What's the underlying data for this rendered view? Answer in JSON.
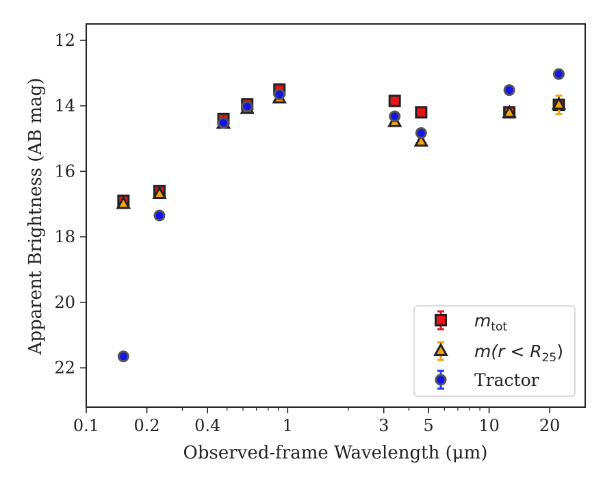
{
  "chart_data": {
    "type": "scatter",
    "title": "",
    "xlabel": "Observed-frame Wavelength (μm)",
    "ylabel": "Apparent Brightness (AB mag)",
    "xscale": "log",
    "xlim": [
      0.1,
      30
    ],
    "ylim": [
      23.2,
      11.5
    ],
    "y_inverted": true,
    "grid": false,
    "legend_position": "lower-right",
    "x_tick_labels": [
      "0.1",
      "0.2",
      "0.4",
      "1",
      "3",
      "5",
      "10",
      "20"
    ],
    "x_ticks": [
      0.1,
      0.2,
      0.4,
      1,
      3,
      5,
      10,
      20
    ],
    "y_tick_labels": [
      "12",
      "14",
      "16",
      "18",
      "20",
      "22"
    ],
    "y_ticks": [
      12,
      14,
      16,
      18,
      20,
      22
    ],
    "series": [
      {
        "name": "m_tot",
        "marker": "square",
        "color": "#e8141b",
        "edge_color": "#222222",
        "error_color": "#e8141b",
        "points": [
          {
            "x": 0.153,
            "y": 16.9,
            "yerr": 0.08
          },
          {
            "x": 0.231,
            "y": 16.6,
            "yerr": 0.08
          },
          {
            "x": 0.48,
            "y": 14.4,
            "yerr": 0.05
          },
          {
            "x": 0.63,
            "y": 13.95,
            "yerr": 0.05
          },
          {
            "x": 0.91,
            "y": 13.5,
            "yerr": 0.05
          },
          {
            "x": 3.4,
            "y": 13.85,
            "yerr": 0.05
          },
          {
            "x": 4.6,
            "y": 14.2,
            "yerr": 0.05
          },
          {
            "x": 12.6,
            "y": 14.2,
            "yerr": 0.08
          },
          {
            "x": 22.2,
            "y": 13.97,
            "yerr": 0.08
          }
        ]
      },
      {
        "name": "m(r < R_25)",
        "marker": "triangle",
        "color": "#f5a50e",
        "edge_color": "#222222",
        "error_color": "#f5a50e",
        "points": [
          {
            "x": 0.153,
            "y": 17.0,
            "yerr": 0.05
          },
          {
            "x": 0.231,
            "y": 16.7,
            "yerr": 0.05
          },
          {
            "x": 0.48,
            "y": 14.55,
            "yerr": 0.04
          },
          {
            "x": 0.63,
            "y": 14.1,
            "yerr": 0.04
          },
          {
            "x": 0.91,
            "y": 13.78,
            "yerr": 0.04
          },
          {
            "x": 3.4,
            "y": 14.5,
            "yerr": 0.04
          },
          {
            "x": 4.6,
            "y": 15.1,
            "yerr": 0.05
          },
          {
            "x": 12.6,
            "y": 14.22,
            "yerr": 0.1
          },
          {
            "x": 22.2,
            "y": 13.97,
            "yerr": 0.28
          }
        ]
      },
      {
        "name": "Tractor",
        "marker": "circle",
        "color": "#1414e6",
        "edge_color": "#555555",
        "error_color": "#1e3cff",
        "points": [
          {
            "x": 0.153,
            "y": 21.65,
            "yerr": 0.05
          },
          {
            "x": 0.231,
            "y": 17.35,
            "yerr": 0.05
          },
          {
            "x": 0.48,
            "y": 14.52,
            "yerr": 0.03
          },
          {
            "x": 0.63,
            "y": 14.02,
            "yerr": 0.03
          },
          {
            "x": 0.91,
            "y": 13.65,
            "yerr": 0.03
          },
          {
            "x": 3.4,
            "y": 14.32,
            "yerr": 0.03
          },
          {
            "x": 4.6,
            "y": 14.83,
            "yerr": 0.03
          },
          {
            "x": 12.6,
            "y": 13.52,
            "yerr": 0.04
          },
          {
            "x": 22.2,
            "y": 13.03,
            "yerr": 0.05
          }
        ]
      }
    ],
    "legend": [
      {
        "label_main": "m",
        "label_sub": "tot",
        "label_rest": ""
      },
      {
        "label_main": "m(r < R",
        "label_sub": "25",
        "label_rest": ")"
      },
      {
        "label_main": "Tractor",
        "label_sub": "",
        "label_rest": ""
      }
    ]
  }
}
